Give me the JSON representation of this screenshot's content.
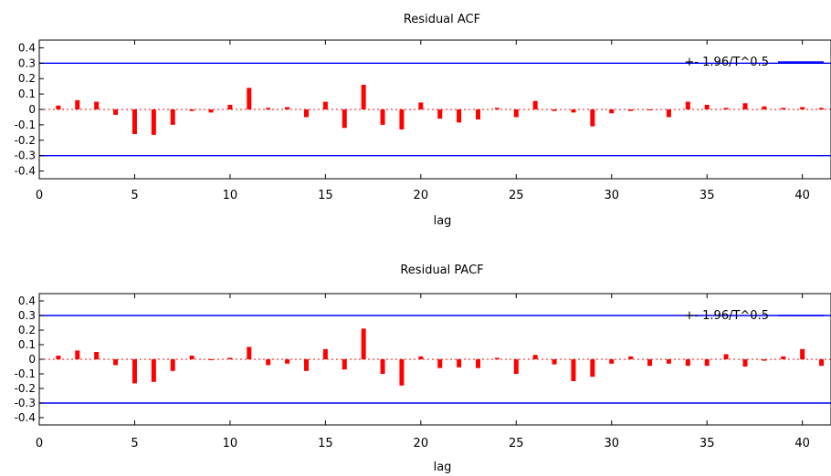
{
  "colors": {
    "bars": "#ff0000",
    "bands": "#0000ff",
    "zeroline": "#ff0000",
    "frame": "#000000"
  },
  "chart_data": [
    {
      "type": "bar",
      "title": "Residual ACF",
      "xlabel": "lag",
      "ylabel": "",
      "xlim": [
        0,
        41.5
      ],
      "ylim": [
        -0.45,
        0.45
      ],
      "xticks": [
        0,
        5,
        10,
        15,
        20,
        25,
        30,
        35,
        40
      ],
      "xtick_labels": [
        "0",
        "5",
        "10",
        "15",
        "20",
        "25",
        "30",
        "35",
        "40"
      ],
      "yticks": [
        0.4,
        0.3,
        0.2,
        0.1,
        0,
        -0.1,
        -0.2,
        -0.3,
        -0.4
      ],
      "ytick_labels": [
        "0.4",
        "0.3",
        "0.2",
        "0.1",
        "0",
        "-0.1",
        "-0.2",
        "-0.3",
        "-0.4"
      ],
      "legend": {
        "label": "+- 1.96/T^0.5",
        "position": "top-right"
      },
      "bands": [
        0.3,
        -0.3
      ],
      "lags": [
        1,
        2,
        3,
        4,
        5,
        6,
        7,
        8,
        9,
        10,
        11,
        12,
        13,
        14,
        15,
        16,
        17,
        18,
        19,
        20,
        21,
        22,
        23,
        24,
        25,
        26,
        27,
        28,
        29,
        30,
        31,
        32,
        33,
        34,
        35,
        36,
        37,
        38,
        39,
        40,
        41
      ],
      "values": [
        0.025,
        0.06,
        0.05,
        -0.035,
        -0.16,
        -0.165,
        -0.1,
        -0.01,
        -0.02,
        0.03,
        0.14,
        0.01,
        0.015,
        -0.05,
        0.05,
        -0.12,
        0.16,
        -0.1,
        -0.13,
        0.045,
        -0.06,
        -0.085,
        -0.065,
        0.01,
        -0.05,
        0.055,
        -0.01,
        -0.02,
        -0.11,
        -0.025,
        -0.01,
        0.0,
        -0.05,
        0.05,
        0.03,
        0.01,
        0.04,
        0.02,
        0.01,
        0.015,
        0.01
      ]
    },
    {
      "type": "bar",
      "title": "Residual PACF",
      "xlabel": "lag",
      "ylabel": "",
      "xlim": [
        0,
        41.5
      ],
      "ylim": [
        -0.45,
        0.45
      ],
      "xticks": [
        0,
        5,
        10,
        15,
        20,
        25,
        30,
        35,
        40
      ],
      "xtick_labels": [
        "0",
        "5",
        "10",
        "15",
        "20",
        "25",
        "30",
        "35",
        "40"
      ],
      "yticks": [
        0.4,
        0.3,
        0.2,
        0.1,
        0,
        -0.1,
        -0.2,
        -0.3,
        -0.4
      ],
      "ytick_labels": [
        "0.4",
        "0.3",
        "0.2",
        "0.1",
        "0",
        "-0.1",
        "-0.2",
        "-0.3",
        "-0.4"
      ],
      "legend": {
        "label": "+- 1.96/T^0.5",
        "position": "top-right"
      },
      "bands": [
        0.3,
        -0.3
      ],
      "lags": [
        1,
        2,
        3,
        4,
        5,
        6,
        7,
        8,
        9,
        10,
        11,
        12,
        13,
        14,
        15,
        16,
        17,
        18,
        19,
        20,
        21,
        22,
        23,
        24,
        25,
        26,
        27,
        28,
        29,
        30,
        31,
        32,
        33,
        34,
        35,
        36,
        37,
        38,
        39,
        40,
        41
      ],
      "values": [
        0.025,
        0.06,
        0.05,
        -0.04,
        -0.165,
        -0.155,
        -0.08,
        0.025,
        -0.005,
        0.01,
        0.085,
        -0.04,
        -0.03,
        -0.08,
        0.07,
        -0.07,
        0.21,
        -0.1,
        -0.18,
        0.02,
        -0.06,
        -0.055,
        -0.06,
        0.01,
        -0.1,
        0.03,
        -0.035,
        -0.15,
        -0.12,
        -0.03,
        0.02,
        -0.045,
        -0.03,
        -0.045,
        -0.045,
        0.035,
        -0.05,
        -0.01,
        0.02,
        0.07,
        -0.045
      ]
    }
  ]
}
